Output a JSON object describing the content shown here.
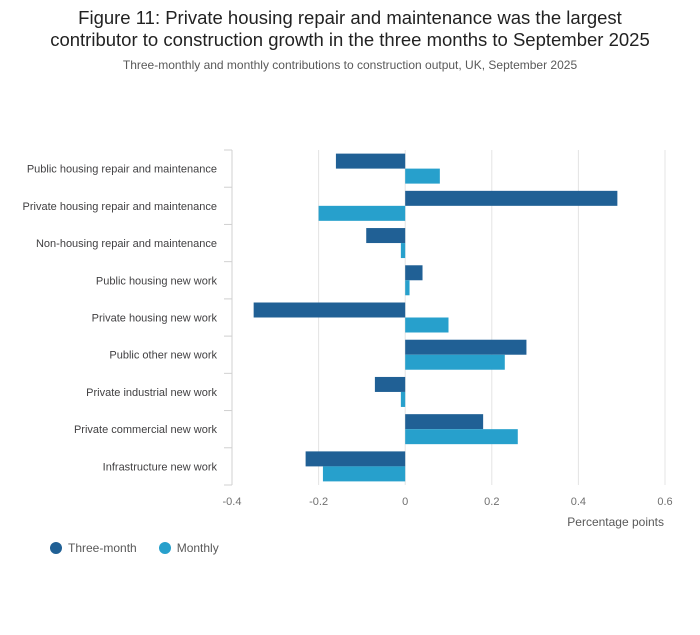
{
  "chart_data": {
    "type": "bar",
    "orientation": "horizontal",
    "title": [
      "Figure 11: Private housing repair and maintenance was the largest",
      "contributor to construction growth in the three months to September 2025"
    ],
    "subtitle": "Three-monthly and monthly contributions to construction output, UK, September 2025",
    "xlabel": "Percentage points",
    "xlim": [
      -0.4,
      0.6
    ],
    "xticks": [
      -0.4,
      -0.2,
      0,
      0.2,
      0.4,
      0.6
    ],
    "xtick_labels": [
      "-0.4",
      "-0.2",
      "0",
      "0.2",
      "0.4",
      "0.6"
    ],
    "categories": [
      "Public housing repair and maintenance",
      "Private housing repair and maintenance",
      "Non-housing repair and maintenance",
      "Public housing new work",
      "Private housing new work",
      "Public other new work",
      "Private industrial new work",
      "Private commercial new work",
      "Infrastructure new work"
    ],
    "series": [
      {
        "name": "Three-month",
        "color": "#206095",
        "values": [
          -0.16,
          0.49,
          -0.09,
          0.04,
          -0.35,
          0.28,
          -0.07,
          0.18,
          -0.23
        ]
      },
      {
        "name": "Monthly",
        "color": "#27a0cc",
        "values": [
          0.08,
          -0.2,
          -0.01,
          0.01,
          0.1,
          0.23,
          -0.01,
          0.26,
          -0.19
        ]
      }
    ],
    "legend_position": "bottom-left",
    "grid": true
  }
}
